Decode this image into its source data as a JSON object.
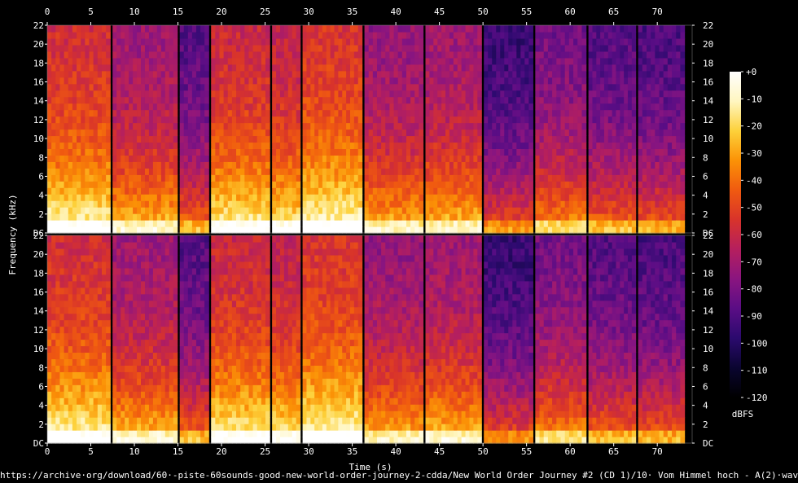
{
  "chart_data": {
    "type": "heatmap",
    "subtype": "spectrogram",
    "channels": 2,
    "xlabel": "Time (s)",
    "ylabel": "Frequency (kHz)",
    "x_ticks": [
      0,
      5,
      10,
      15,
      20,
      25,
      30,
      35,
      40,
      45,
      50,
      55,
      60,
      65,
      70
    ],
    "y_ticks": [
      "DC",
      2,
      4,
      6,
      8,
      10,
      12,
      14,
      16,
      18,
      20,
      22
    ],
    "xlim": [
      0,
      74
    ],
    "ylim": [
      0,
      22
    ],
    "colorbar": {
      "label": "dBFS",
      "ticks": [
        0,
        -10,
        -20,
        -30,
        -40,
        -50,
        -60,
        -70,
        -80,
        -90,
        -100,
        -110,
        -120
      ],
      "tick_labels": [
        "+0",
        "-10",
        "-20",
        "-30",
        "-40",
        "-50",
        "-60",
        "-70",
        "-80",
        "-90",
        "-100",
        "-110",
        "-120"
      ],
      "range": [
        -120,
        0
      ],
      "colors": [
        "#000000",
        "#0a0530",
        "#2b0a6e",
        "#5a0d85",
        "#8a1580",
        "#b51f5e",
        "#d8332b",
        "#f05a10",
        "#fb9206",
        "#fdd13a",
        "#fff6c0",
        "#ffffff"
      ]
    },
    "silence_gaps_s": [
      7.5,
      15.2,
      18.8,
      25.8,
      29.3,
      36.4,
      43.4,
      50.1,
      56.0,
      62.1,
      67.8,
      73.4
    ],
    "segments": [
      {
        "start": 0.0,
        "end": 7.5,
        "level": 0.62
      },
      {
        "start": 7.5,
        "end": 15.2,
        "level": 0.5
      },
      {
        "start": 15.2,
        "end": 18.8,
        "level": 0.36
      },
      {
        "start": 18.8,
        "end": 25.8,
        "level": 0.6
      },
      {
        "start": 25.8,
        "end": 29.3,
        "level": 0.58
      },
      {
        "start": 29.3,
        "end": 36.4,
        "level": 0.64
      },
      {
        "start": 36.4,
        "end": 43.4,
        "level": 0.48
      },
      {
        "start": 43.4,
        "end": 50.1,
        "level": 0.5
      },
      {
        "start": 50.1,
        "end": 56.0,
        "level": 0.3
      },
      {
        "start": 56.0,
        "end": 62.1,
        "level": 0.42
      },
      {
        "start": 62.1,
        "end": 67.8,
        "level": 0.36
      },
      {
        "start": 67.8,
        "end": 73.4,
        "level": 0.34
      }
    ]
  },
  "footer": {
    "source_url": "https://archive·org/download/60·-piste-60sounds-good-new-world-order-journey-2-cdda/New World Order Journey #2 (CD 1)/10· Vom Himmel hoch - A(2)·wav"
  }
}
